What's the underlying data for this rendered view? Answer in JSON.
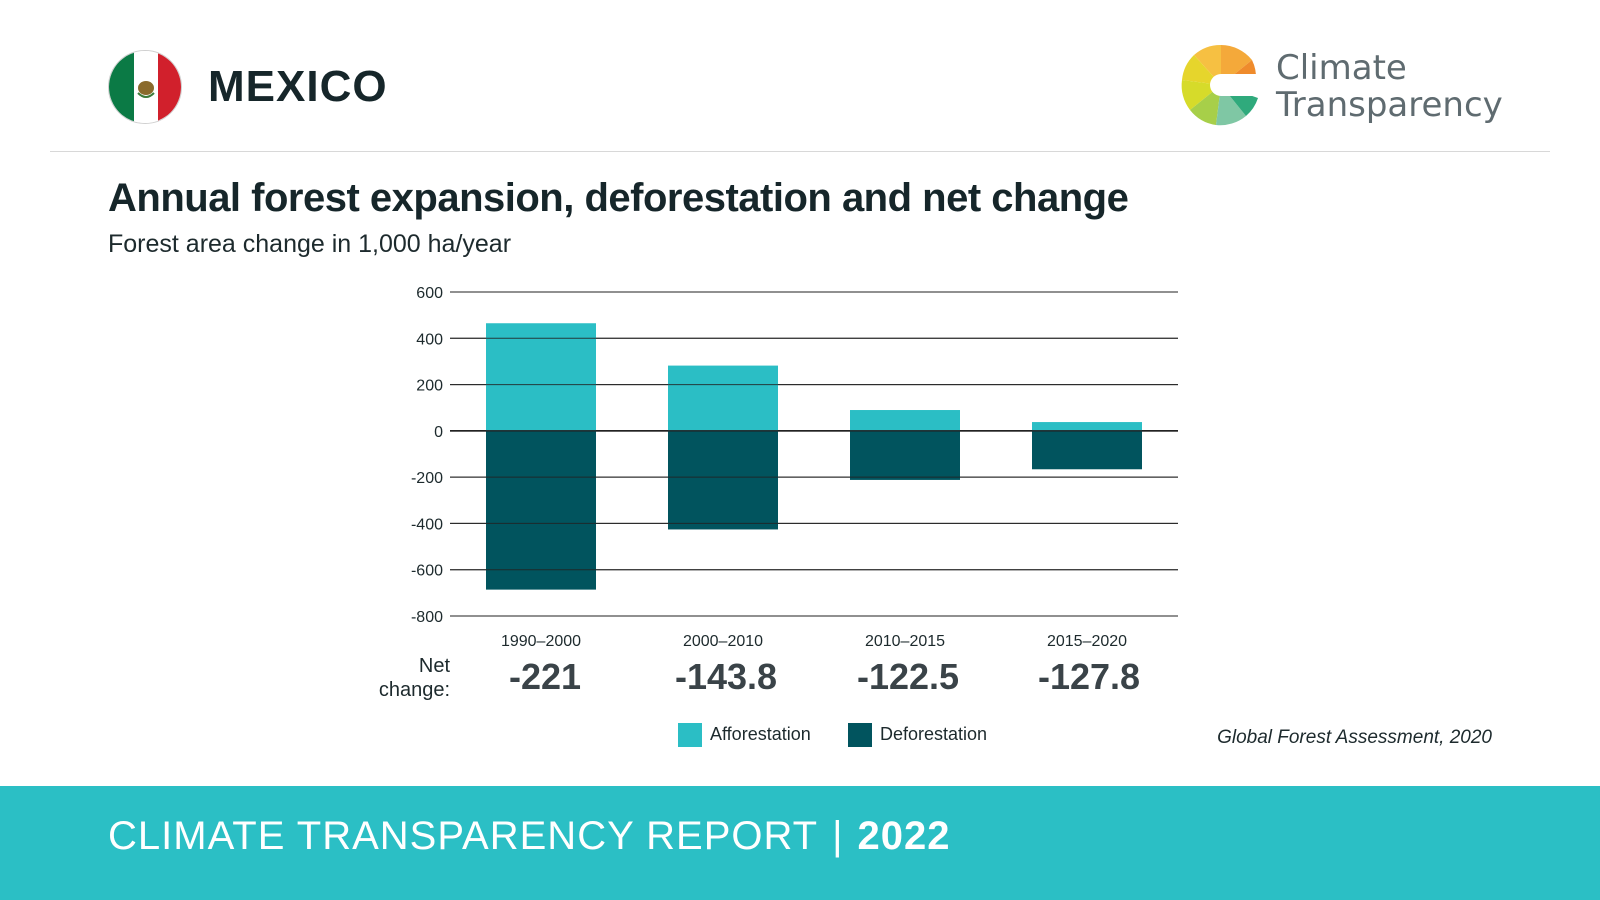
{
  "header": {
    "country": "MEXICO",
    "brand_line1": "Climate",
    "brand_line2": "Transparency"
  },
  "colors": {
    "afforestation": "#2bbec5",
    "deforestation": "#01545e",
    "footer": "#2bbfc5"
  },
  "icons": {
    "flag": "mexico-flag-icon",
    "logo": "climate-transparency-logo-icon"
  },
  "net_change_label_line1": "Net",
  "net_change_label_line2": "change:",
  "net_changes": [
    "-221",
    "-143.8",
    "-122.5",
    "-127.8"
  ],
  "legend": {
    "afforestation": "Afforestation",
    "deforestation": "Deforestation"
  },
  "source": "Global Forest Assessment, 2020",
  "footer": {
    "report": "CLIMATE TRANSPARENCY REPORT",
    "separator": "|",
    "year": "2022"
  },
  "chart_data": {
    "type": "bar",
    "stacked": true,
    "title": "Annual forest expansion, deforestation and net change",
    "subtitle": "Forest area change in 1,000 ha/year",
    "categories": [
      "1990–2000",
      "2000–2010",
      "2010–2015",
      "2015–2020"
    ],
    "series": [
      {
        "name": "Afforestation",
        "values": [
          465,
          282,
          90,
          38
        ]
      },
      {
        "name": "Deforestation",
        "values": [
          -686,
          -426,
          -212,
          -166
        ]
      }
    ],
    "ylim": [
      -800,
      600
    ],
    "yticks": [
      600,
      400,
      200,
      0,
      -200,
      -400,
      -600,
      -800
    ],
    "grid": true,
    "legend_position": "bottom"
  }
}
